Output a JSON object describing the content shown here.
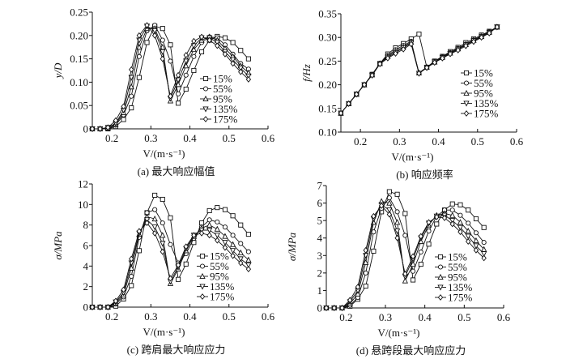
{
  "legend_labels": [
    "15%",
    "55%",
    "95%",
    "135%",
    "175%"
  ],
  "chart_data": [
    {
      "type": "line",
      "caption": "(a) 最大响应幅值",
      "xlabel": "V/(m·s⁻¹)",
      "ylabel": "y/D",
      "xlim": [
        0.15,
        0.6
      ],
      "ylim": [
        0,
        0.25
      ],
      "xticks": [
        0.2,
        0.3,
        0.4,
        0.5,
        0.6
      ],
      "xtick_labels": [
        "0.2",
        "0.3",
        "0.4",
        "0.5",
        "0.6"
      ],
      "yticks": [
        0,
        0.05,
        0.1,
        0.15,
        0.2,
        0.25
      ],
      "ytick_labels": [
        "0",
        "0.05",
        "0.10",
        "0.15",
        "0.20",
        "0.25"
      ],
      "legend_position": "center-right",
      "x": [
        0.15,
        0.17,
        0.19,
        0.21,
        0.23,
        0.25,
        0.27,
        0.29,
        0.31,
        0.33,
        0.35,
        0.37,
        0.39,
        0.41,
        0.43,
        0.45,
        0.47,
        0.49,
        0.51,
        0.53,
        0.55
      ],
      "series": [
        {
          "name": "15%",
          "marker": "square",
          "values": [
            0,
            0,
            0,
            0.005,
            0.02,
            0.045,
            0.11,
            0.185,
            0.22,
            0.215,
            0.18,
            0.055,
            0.085,
            0.125,
            0.165,
            0.19,
            0.198,
            0.195,
            0.185,
            0.168,
            0.15
          ]
        },
        {
          "name": "55%",
          "marker": "circle",
          "values": [
            0,
            0,
            0,
            0.008,
            0.03,
            0.07,
            0.155,
            0.21,
            0.222,
            0.19,
            0.145,
            0.075,
            0.115,
            0.155,
            0.185,
            0.197,
            0.195,
            0.18,
            0.16,
            0.14,
            0.128
          ]
        },
        {
          "name": "95%",
          "marker": "triangle-up",
          "values": [
            0,
            0,
            0.002,
            0.01,
            0.035,
            0.09,
            0.175,
            0.215,
            0.215,
            0.175,
            0.06,
            0.095,
            0.135,
            0.17,
            0.19,
            0.197,
            0.19,
            0.172,
            0.155,
            0.135,
            0.12
          ]
        },
        {
          "name": "135%",
          "marker": "triangle-down",
          "values": [
            0,
            0,
            0.003,
            0.012,
            0.04,
            0.11,
            0.19,
            0.22,
            0.21,
            0.165,
            0.065,
            0.105,
            0.145,
            0.178,
            0.195,
            0.195,
            0.185,
            0.165,
            0.148,
            0.13,
            0.113
          ]
        },
        {
          "name": "175%",
          "marker": "diamond",
          "values": [
            0,
            0,
            0.003,
            0.018,
            0.048,
            0.127,
            0.2,
            0.222,
            0.2,
            0.15,
            0.07,
            0.115,
            0.158,
            0.188,
            0.197,
            0.19,
            0.178,
            0.16,
            0.14,
            0.122,
            0.106
          ]
        }
      ]
    },
    {
      "type": "line",
      "caption": "(b) 响应频率",
      "xlabel": "V/(m·s⁻¹)",
      "ylabel": "f/Hz",
      "xlim": [
        0.15,
        0.6
      ],
      "ylim": [
        0.1,
        0.35
      ],
      "xticks": [
        0.2,
        0.3,
        0.4,
        0.5,
        0.6
      ],
      "xtick_labels": [
        "0.2",
        "0.3",
        "0.4",
        "0.5",
        "0.6"
      ],
      "yticks": [
        0.1,
        0.15,
        0.2,
        0.25,
        0.3,
        0.35
      ],
      "ytick_labels": [
        "0.10",
        "0.15",
        "0.20",
        "0.25",
        "0.30",
        "0.35"
      ],
      "legend_position": "center-right",
      "x": [
        0.15,
        0.17,
        0.19,
        0.21,
        0.23,
        0.25,
        0.27,
        0.29,
        0.31,
        0.33,
        0.35,
        0.37,
        0.39,
        0.41,
        0.43,
        0.45,
        0.47,
        0.49,
        0.51,
        0.53,
        0.55
      ],
      "series": [
        {
          "name": "15%",
          "marker": "square",
          "values": [
            0.14,
            0.16,
            0.18,
            0.2,
            0.222,
            0.245,
            0.265,
            0.278,
            0.287,
            0.297,
            0.307,
            0.237,
            0.25,
            0.26,
            0.27,
            0.279,
            0.289,
            0.297,
            0.305,
            0.313,
            0.322
          ]
        },
        {
          "name": "55%",
          "marker": "circle",
          "values": [
            0.14,
            0.16,
            0.18,
            0.2,
            0.222,
            0.245,
            0.262,
            0.274,
            0.283,
            0.292,
            0.225,
            0.237,
            0.249,
            0.259,
            0.268,
            0.277,
            0.286,
            0.295,
            0.303,
            0.312,
            0.322
          ]
        },
        {
          "name": "95%",
          "marker": "triangle-up",
          "values": [
            0.14,
            0.16,
            0.18,
            0.2,
            0.221,
            0.245,
            0.26,
            0.271,
            0.28,
            0.29,
            0.225,
            0.237,
            0.248,
            0.258,
            0.267,
            0.276,
            0.285,
            0.294,
            0.302,
            0.311,
            0.322
          ]
        },
        {
          "name": "135%",
          "marker": "triangle-down",
          "values": [
            0.14,
            0.16,
            0.18,
            0.2,
            0.22,
            0.244,
            0.258,
            0.268,
            0.278,
            0.288,
            0.224,
            0.236,
            0.248,
            0.257,
            0.266,
            0.275,
            0.284,
            0.293,
            0.301,
            0.31,
            0.322
          ]
        },
        {
          "name": "175%",
          "marker": "diamond",
          "values": [
            0.14,
            0.16,
            0.18,
            0.2,
            0.22,
            0.244,
            0.256,
            0.266,
            0.275,
            0.286,
            0.224,
            0.236,
            0.247,
            0.256,
            0.265,
            0.273,
            0.282,
            0.291,
            0.3,
            0.309,
            0.322
          ]
        }
      ]
    },
    {
      "type": "line",
      "caption": "(c) 跨肩最大响应应力",
      "xlabel": "V/(m·s⁻¹)",
      "ylabel": "σ/MPa",
      "xlim": [
        0.15,
        0.6
      ],
      "ylim": [
        0,
        12
      ],
      "xticks": [
        0.2,
        0.3,
        0.4,
        0.5,
        0.6
      ],
      "xtick_labels": [
        "0.2",
        "0.3",
        "0.4",
        "0.5",
        "0.6"
      ],
      "yticks": [
        0,
        2,
        4,
        6,
        8,
        10,
        12
      ],
      "ytick_labels": [
        "0",
        "2",
        "4",
        "6",
        "8",
        "10",
        "12"
      ],
      "legend_position": "center-right",
      "x": [
        0.15,
        0.17,
        0.19,
        0.21,
        0.23,
        0.25,
        0.27,
        0.29,
        0.31,
        0.33,
        0.35,
        0.37,
        0.39,
        0.41,
        0.43,
        0.45,
        0.47,
        0.49,
        0.51,
        0.53,
        0.55
      ],
      "series": [
        {
          "name": "15%",
          "marker": "square",
          "values": [
            0,
            0,
            0,
            0.1,
            0.8,
            2.1,
            5.5,
            9.2,
            10.9,
            10.5,
            8.7,
            2.7,
            4.2,
            6.3,
            8.2,
            9.4,
            9.7,
            9.5,
            8.9,
            8.0,
            7.1
          ]
        },
        {
          "name": "55%",
          "marker": "circle",
          "values": [
            0,
            0,
            0,
            0.3,
            1.0,
            3.0,
            6.8,
            9.2,
            9.5,
            8.2,
            6.1,
            4.3,
            5.2,
            6.7,
            7.8,
            8.5,
            8.3,
            7.8,
            7.0,
            6.2,
            5.4
          ]
        },
        {
          "name": "95%",
          "marker": "triangle-up",
          "values": [
            0,
            0,
            0,
            0.4,
            1.2,
            3.8,
            7.1,
            8.8,
            8.6,
            7.0,
            2.3,
            3.7,
            5.5,
            6.9,
            7.7,
            8.0,
            7.6,
            6.9,
            6.1,
            5.3,
            4.6
          ]
        },
        {
          "name": "135%",
          "marker": "triangle-down",
          "values": [
            0,
            0,
            0,
            0.5,
            1.4,
            4.3,
            7.2,
            8.5,
            7.8,
            6.2,
            2.5,
            3.9,
            5.7,
            7.0,
            7.5,
            7.5,
            7.0,
            6.3,
            5.5,
            4.7,
            4.1
          ]
        },
        {
          "name": "175%",
          "marker": "diamond",
          "values": [
            0,
            0,
            0,
            0.6,
            1.7,
            4.7,
            7.4,
            8.2,
            7.2,
            5.4,
            2.8,
            4.1,
            5.9,
            7.0,
            7.2,
            7.0,
            6.5,
            5.8,
            5.0,
            4.3,
            3.7
          ]
        }
      ]
    },
    {
      "type": "line",
      "caption": "(d) 悬跨段最大响应应力",
      "xlabel": "V/(m·s⁻¹)",
      "ylabel": "σ/MPa",
      "xlim": [
        0.15,
        0.6
      ],
      "ylim": [
        0,
        7
      ],
      "xticks": [
        0.2,
        0.3,
        0.4,
        0.5,
        0.6
      ],
      "xtick_labels": [
        "0.2",
        "0.3",
        "0.4",
        "0.5",
        "0.6"
      ],
      "yticks": [
        0,
        1,
        2,
        3,
        4,
        5,
        6,
        7
      ],
      "ytick_labels": [
        "0",
        "1",
        "2",
        "3",
        "4",
        "5",
        "6",
        "7"
      ],
      "legend_position": "center-right",
      "x": [
        0.15,
        0.17,
        0.19,
        0.21,
        0.23,
        0.25,
        0.27,
        0.29,
        0.31,
        0.33,
        0.35,
        0.37,
        0.39,
        0.41,
        0.43,
        0.45,
        0.47,
        0.49,
        0.51,
        0.53,
        0.55
      ],
      "series": [
        {
          "name": "15%",
          "marker": "square",
          "values": [
            0,
            0,
            0,
            0.1,
            0.5,
            1.25,
            3.25,
            5.5,
            6.65,
            6.5,
            5.4,
            1.6,
            2.5,
            3.65,
            4.8,
            5.6,
            5.95,
            5.9,
            5.6,
            5.1,
            4.6
          ]
        },
        {
          "name": "55%",
          "marker": "circle",
          "values": [
            0,
            0,
            0,
            0.15,
            0.6,
            2.0,
            4.35,
            5.7,
            6.3,
            5.5,
            4.15,
            2.1,
            3.2,
            4.4,
            5.25,
            5.6,
            5.6,
            5.3,
            4.85,
            4.3,
            3.75
          ]
        },
        {
          "name": "95%",
          "marker": "triangle-up",
          "values": [
            0,
            0,
            0,
            0.25,
            0.8,
            2.6,
            4.9,
            6.1,
            6.0,
            4.9,
            1.55,
            2.5,
            3.8,
            4.75,
            5.3,
            5.4,
            5.3,
            4.9,
            4.4,
            3.85,
            3.35
          ]
        },
        {
          "name": "135%",
          "marker": "triangle-down",
          "values": [
            0,
            0,
            0,
            0.35,
            1.0,
            3.0,
            5.1,
            5.9,
            5.6,
            4.4,
            1.8,
            2.8,
            4.0,
            4.85,
            5.25,
            5.3,
            5.0,
            4.6,
            4.1,
            3.55,
            3.1
          ]
        },
        {
          "name": "175%",
          "marker": "diamond",
          "values": [
            0,
            0,
            0,
            0.45,
            1.2,
            3.3,
            5.25,
            5.85,
            5.35,
            4.0,
            1.95,
            2.95,
            4.1,
            4.9,
            5.2,
            5.15,
            4.8,
            4.35,
            3.8,
            3.3,
            2.85
          ]
        }
      ]
    }
  ]
}
